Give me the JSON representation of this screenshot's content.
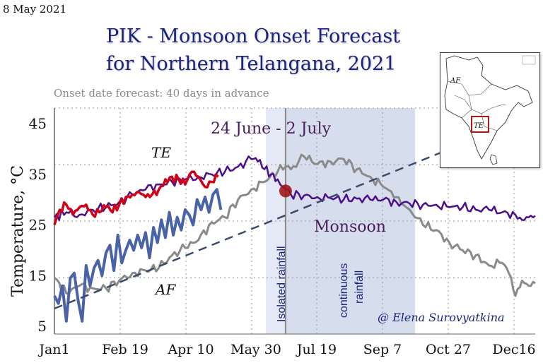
{
  "header": {
    "date": "8 May 2021",
    "title_line1": "PIK - Monsoon Onset Forecast",
    "title_line2": "for Northern Telangana, 2021",
    "subtitle": "Onset date forecast: 40 days in advance"
  },
  "chart_data": {
    "type": "line",
    "title": "PIK - Monsoon Onset Forecast for Northern Telangana, 2021",
    "subtitle": "Onset date forecast: 40 days in advance",
    "xlabel": "",
    "ylabel": "Temperature, °C",
    "ylim": [
      5,
      45
    ],
    "xlim_days": [
      1,
      365
    ],
    "grid": true,
    "yticks": [
      5,
      15,
      25,
      35,
      45
    ],
    "xticks": [
      {
        "label": "Jan1",
        "day": 1
      },
      {
        "label": "Feb 19",
        "day": 50
      },
      {
        "label": "Apr 10",
        "day": 100
      },
      {
        "label": "May 30",
        "day": 150
      },
      {
        "label": "Jul 19",
        "day": 200
      },
      {
        "label": "Sep 7",
        "day": 250
      },
      {
        "label": "Oct 27",
        "day": 300
      },
      {
        "label": "Dec16",
        "day": 350
      }
    ],
    "series": [
      {
        "name": "TE climatology (purple)",
        "color": "#4b0f8a",
        "x": [
          1,
          10,
          20,
          30,
          40,
          50,
          60,
          70,
          80,
          90,
          100,
          110,
          120,
          130,
          140,
          150,
          155,
          160,
          165,
          170,
          176,
          180,
          190,
          200,
          210,
          220,
          230,
          240,
          250,
          260,
          270,
          280,
          290,
          300,
          310,
          320,
          330,
          340,
          350,
          355,
          360,
          365
        ],
        "values": [
          26.5,
          27.5,
          27.0,
          28.0,
          28.5,
          29.5,
          31.0,
          32.0,
          33.0,
          33.5,
          34.0,
          34.5,
          35.0,
          35.5,
          36.5,
          38.0,
          37.5,
          36.0,
          35.0,
          34.0,
          32.0,
          31.0,
          30.8,
          30.5,
          30.3,
          30.0,
          30.2,
          30.0,
          30.0,
          29.5,
          29.2,
          29.0,
          29.0,
          28.5,
          28.5,
          28.0,
          28.0,
          27.5,
          27.0,
          26.0,
          26.5,
          26.8
        ]
      },
      {
        "name": "TE 2021 observed (red)",
        "color": "#d00018",
        "x": [
          1,
          5,
          10,
          15,
          20,
          25,
          30,
          35,
          40,
          45,
          50,
          55,
          60,
          65,
          70,
          75,
          80,
          85,
          90,
          95,
          100,
          105,
          110,
          115,
          120,
          125
        ],
        "values": [
          25.0,
          28.0,
          29.0,
          27.0,
          28.5,
          29.0,
          27.0,
          27.5,
          28.5,
          27.5,
          29.0,
          30.5,
          31.0,
          31.5,
          30.5,
          31.0,
          32.0,
          34.0,
          34.5,
          34.0,
          33.0,
          35.5,
          34.5,
          32.5,
          33.5,
          34.5
        ]
      },
      {
        "name": "AF climatology (grey)",
        "color": "#8a8a8a",
        "x": [
          1,
          10,
          20,
          30,
          40,
          50,
          60,
          70,
          80,
          90,
          100,
          110,
          120,
          130,
          140,
          150,
          160,
          170,
          176,
          180,
          190,
          200,
          210,
          220,
          230,
          240,
          250,
          260,
          265,
          270,
          280,
          290,
          300,
          310,
          320,
          330,
          340,
          345,
          350,
          355,
          360,
          365
        ],
        "values": [
          14.5,
          11.5,
          13.0,
          12.5,
          12.5,
          14.0,
          15.5,
          16.0,
          16.5,
          19.0,
          20.5,
          22.0,
          25.5,
          26.5,
          30.0,
          32.0,
          33.5,
          35.5,
          36.5,
          36.0,
          38.5,
          37.0,
          37.5,
          38.0,
          36.0,
          34.5,
          32.5,
          30.5,
          29.0,
          28.0,
          25.0,
          24.0,
          21.5,
          20.0,
          19.0,
          17.0,
          17.5,
          15.5,
          11.0,
          14.0,
          13.0,
          13.5
        ]
      },
      {
        "name": "AF 2021 observed (blue)",
        "color": "#4a63a8",
        "x": [
          1,
          4,
          7,
          10,
          13,
          16,
          19,
          22,
          25,
          28,
          31,
          34,
          37,
          40,
          43,
          46,
          49,
          52,
          55,
          58,
          61,
          64,
          67,
          70,
          73,
          76,
          79,
          82,
          85,
          88,
          91,
          94,
          97,
          100,
          103,
          106,
          109,
          112,
          115,
          118,
          121,
          124,
          127
        ],
        "values": [
          11.0,
          9.5,
          13.0,
          6.0,
          14.5,
          15.5,
          10.0,
          6.0,
          17.0,
          13.0,
          16.5,
          18.0,
          15.0,
          19.5,
          21.0,
          16.0,
          23.0,
          17.5,
          20.0,
          22.0,
          20.0,
          23.0,
          20.5,
          23.5,
          18.5,
          24.5,
          21.5,
          26.0,
          22.5,
          27.5,
          23.0,
          26.5,
          24.0,
          28.0,
          27.0,
          25.0,
          30.0,
          28.0,
          30.5,
          27.5,
          31.0,
          32.0,
          28.0
        ]
      }
    ],
    "trend_line": {
      "name": "AF trend (dashed)",
      "color": "#3a4a6a",
      "x": [
        1,
        310
      ],
      "values": [
        8.5,
        41.0
      ]
    },
    "onset_point": {
      "label": "Onset",
      "day": 176,
      "value": 31.7,
      "color": "#a01818"
    },
    "shaded_regions": [
      {
        "name": "Isolated rainfall",
        "from_day": 161,
        "to_day": 176,
        "color": "#e4e9f5"
      },
      {
        "name": "continuous rainfall",
        "from_day": 176,
        "to_day": 274,
        "color": "#d6deee"
      }
    ],
    "annotations": {
      "onset_window": "24 June - 2 July",
      "monsoon": "Monsoon",
      "te_label": "TE",
      "af_label": "AF",
      "isolated_rainfall": "Isolated rainfall",
      "continuous_rainfall_1": "continuous",
      "continuous_rainfall_2": "rainfall",
      "credit": "@ Elena Surovyatkina"
    }
  },
  "inset_map": {
    "labels": {
      "af": "AF",
      "te": "TE"
    },
    "highlight_color": "#b01818"
  }
}
